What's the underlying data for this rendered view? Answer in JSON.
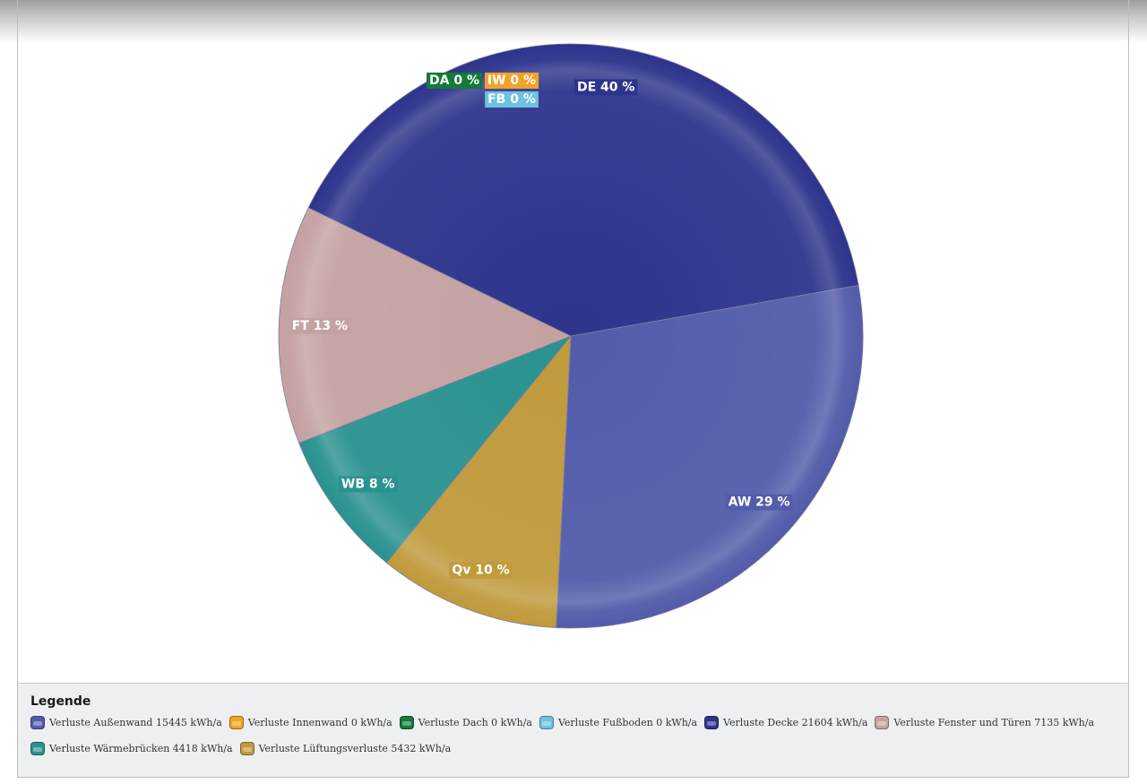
{
  "chart_data": {
    "type": "pie",
    "start_angle_deg": -10,
    "slices": [
      {
        "short": "AW",
        "label": "AW 29 %",
        "value": 15445,
        "percent": 29,
        "color": "#525caa"
      },
      {
        "short": "Qv",
        "label": "Qv 10 %",
        "value": 5432,
        "percent": 10,
        "color": "#c09a3c"
      },
      {
        "short": "WB",
        "label": "WB 8 %",
        "value": 4418,
        "percent": 8,
        "color": "#2a9290"
      },
      {
        "short": "FT",
        "label": "FT 13 %",
        "value": 7135,
        "percent": 13,
        "color": "#c5a2a2"
      },
      {
        "short": "DE",
        "label": "DE 40 %",
        "value": 21604,
        "percent": 40,
        "color": "#2e348c"
      },
      {
        "short": "FB",
        "label": "FB 0 %",
        "value": 0,
        "percent": 0,
        "color": "#6cc3df"
      },
      {
        "short": "DA",
        "label": "DA 0 %",
        "value": 0,
        "percent": 0,
        "color": "#157a3a"
      },
      {
        "short": "IW",
        "label": "IW 0 %",
        "value": 0,
        "percent": 0,
        "color": "#f4a226"
      }
    ]
  },
  "legend": {
    "title": "Legende",
    "items": [
      {
        "text": "Verluste Außenwand 15445 kWh/a",
        "color": "#525caa"
      },
      {
        "text": "Verluste Innenwand 0 kWh/a",
        "color": "#f4a226"
      },
      {
        "text": "Verluste Dach 0 kWh/a",
        "color": "#157a3a"
      },
      {
        "text": "Verluste Fußboden 0 kWh/a",
        "color": "#6cc3df"
      },
      {
        "text": "Verluste Decke 21604 kWh/a",
        "color": "#2e348c"
      },
      {
        "text": "Verluste Fenster und Türen 7135 kWh/a",
        "color": "#c5a2a2"
      },
      {
        "text": "Verluste Wärmebrücken 4418 kWh/a",
        "color": "#2a9290"
      },
      {
        "text": "Verluste Lüftungsverluste 5432 kWh/a",
        "color": "#c09a3c"
      }
    ]
  }
}
